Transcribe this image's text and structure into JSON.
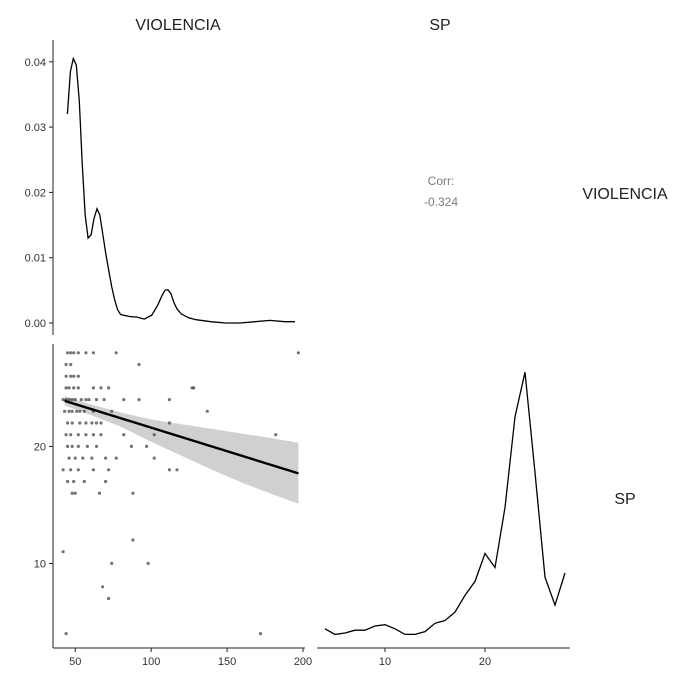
{
  "chart_data": {
    "type": "scatter",
    "variables": [
      "VIOLENCIA",
      "SP"
    ],
    "panels": {
      "violencia_density": {
        "type": "line",
        "yticks": [
          "0.00",
          "0.01",
          "0.02",
          "0.03",
          "0.04"
        ],
        "ylim": [
          0,
          0.0415
        ],
        "xlim": [
          40,
          197
        ],
        "x": [
          43,
          45,
          47,
          49,
          51,
          53,
          55,
          57,
          59,
          61,
          63,
          65,
          67,
          69,
          71,
          73,
          75,
          77,
          79,
          81,
          85,
          90,
          95,
          100,
          104,
          107,
          109,
          111,
          113,
          115,
          117,
          120,
          125,
          130,
          140,
          150,
          160,
          170,
          180,
          190,
          197
        ],
        "y": [
          0.032,
          0.0385,
          0.0405,
          0.0395,
          0.034,
          0.0245,
          0.0165,
          0.013,
          0.0135,
          0.016,
          0.0175,
          0.0165,
          0.0135,
          0.0105,
          0.008,
          0.0055,
          0.0035,
          0.002,
          0.0013,
          0.0012,
          0.001,
          0.0009,
          0.0006,
          0.0012,
          0.0027,
          0.0042,
          0.005,
          0.0051,
          0.0045,
          0.0032,
          0.0022,
          0.0014,
          0.0008,
          0.0005,
          0.0002,
          0.0,
          0.0,
          0.0002,
          0.0004,
          0.0002,
          0.0002
        ]
      },
      "correlation": {
        "label": "Corr:",
        "value": "-0.324"
      },
      "scatter": {
        "xticks": [
          "50",
          "100",
          "150",
          "200"
        ],
        "xtick_values": [
          50,
          100,
          150,
          200
        ],
        "yticks": [
          "10",
          "20"
        ],
        "ytick_values": [
          10,
          20
        ],
        "xlim": [
          38,
          200
        ],
        "ylim": [
          3.2,
          28.5
        ],
        "points": [
          [
            45,
            28
          ],
          [
            47,
            28
          ],
          [
            49,
            28
          ],
          [
            52,
            28
          ],
          [
            57,
            28
          ],
          [
            62,
            28
          ],
          [
            77,
            28
          ],
          [
            197,
            28
          ],
          [
            44,
            27
          ],
          [
            47,
            27
          ],
          [
            44,
            26
          ],
          [
            47,
            26
          ],
          [
            49,
            26
          ],
          [
            52,
            26
          ],
          [
            44,
            25
          ],
          [
            46,
            25
          ],
          [
            49,
            25
          ],
          [
            52,
            25
          ],
          [
            62,
            25
          ],
          [
            67,
            25
          ],
          [
            72,
            25
          ],
          [
            92,
            27
          ],
          [
            127,
            25
          ],
          [
            128,
            25
          ],
          [
            42,
            24
          ],
          [
            44,
            24
          ],
          [
            46,
            24
          ],
          [
            48,
            24
          ],
          [
            50,
            24
          ],
          [
            54,
            24
          ],
          [
            57,
            24
          ],
          [
            59,
            24
          ],
          [
            64,
            24
          ],
          [
            69,
            24
          ],
          [
            82,
            24
          ],
          [
            92,
            24
          ],
          [
            112,
            24
          ],
          [
            43,
            23
          ],
          [
            46,
            23
          ],
          [
            48,
            23
          ],
          [
            51,
            23
          ],
          [
            53,
            23
          ],
          [
            56,
            23
          ],
          [
            62,
            23
          ],
          [
            74,
            23
          ],
          [
            137,
            23
          ],
          [
            45,
            22
          ],
          [
            48,
            22
          ],
          [
            53,
            22
          ],
          [
            57,
            22
          ],
          [
            61,
            22
          ],
          [
            64,
            22
          ],
          [
            67,
            22
          ],
          [
            112,
            22
          ],
          [
            44,
            21
          ],
          [
            47,
            21
          ],
          [
            52,
            21
          ],
          [
            57,
            21
          ],
          [
            62,
            21
          ],
          [
            67,
            21
          ],
          [
            82,
            21
          ],
          [
            102,
            21
          ],
          [
            182,
            21
          ],
          [
            45,
            20
          ],
          [
            48,
            20
          ],
          [
            52,
            20
          ],
          [
            58,
            20
          ],
          [
            64,
            20
          ],
          [
            87,
            20
          ],
          [
            97,
            20
          ],
          [
            46,
            19
          ],
          [
            50,
            19
          ],
          [
            55,
            19
          ],
          [
            61,
            19
          ],
          [
            70,
            19
          ],
          [
            77,
            19
          ],
          [
            102,
            19
          ],
          [
            42,
            18
          ],
          [
            47,
            18
          ],
          [
            52,
            18
          ],
          [
            62,
            18
          ],
          [
            72,
            18
          ],
          [
            112,
            18
          ],
          [
            117,
            18
          ],
          [
            45,
            17
          ],
          [
            49,
            17
          ],
          [
            56,
            17
          ],
          [
            70,
            17
          ],
          [
            48,
            16
          ],
          [
            50,
            16
          ],
          [
            66,
            16
          ],
          [
            88,
            16
          ],
          [
            88,
            12
          ],
          [
            42,
            11
          ],
          [
            74,
            10
          ],
          [
            98,
            10
          ],
          [
            68,
            8
          ],
          [
            72,
            7
          ],
          [
            44,
            4
          ],
          [
            172,
            4
          ]
        ],
        "fit": {
          "x": [
            43,
            197
          ],
          "y": [
            23.9,
            17.7
          ]
        },
        "ribbon": {
          "x": [
            43,
            60,
            80,
            100,
            120,
            140,
            160,
            180,
            197
          ],
          "upper": [
            24.3,
            23.6,
            22.9,
            22.3,
            21.9,
            21.5,
            21.1,
            20.7,
            20.3
          ],
          "lower": [
            23.5,
            22.7,
            21.7,
            20.4,
            19.2,
            18.0,
            16.9,
            15.9,
            15.1
          ]
        }
      },
      "sp_density": {
        "type": "line",
        "xticks": [
          "10",
          "20"
        ],
        "xtick_values": [
          10,
          20
        ],
        "xlim": [
          3.2,
          28.5
        ],
        "ylim": [
          0,
          0.2
        ],
        "x": [
          4,
          5,
          6,
          7,
          8,
          9,
          10,
          11,
          12,
          13,
          14,
          15,
          16,
          17,
          18,
          19,
          20,
          21,
          22,
          23,
          24,
          25,
          26,
          27,
          28
        ],
        "y": [
          0.008,
          0.004,
          0.005,
          0.007,
          0.007,
          0.01,
          0.011,
          0.008,
          0.004,
          0.004,
          0.006,
          0.012,
          0.014,
          0.02,
          0.032,
          0.042,
          0.062,
          0.052,
          0.095,
          0.16,
          0.192,
          0.12,
          0.045,
          0.025,
          0.048
        ]
      }
    }
  }
}
